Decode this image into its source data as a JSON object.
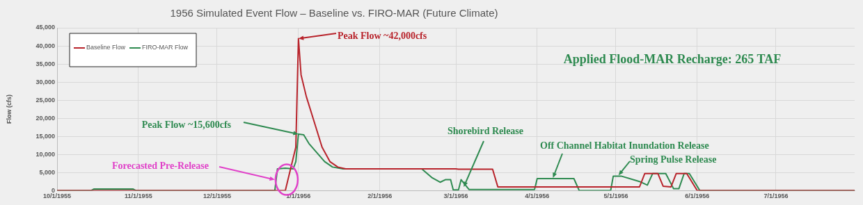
{
  "chart_data": {
    "type": "line",
    "title": "1956 Simulated Event Flow – Baseline vs. FIRO-MAR (Future Climate)",
    "ylabel": "Flow (cfs)",
    "xlim": [
      "1955-10-01",
      "1956-07-31"
    ],
    "xticks": [
      {
        "value": "1955-10-01",
        "label": "10/1/1955"
      },
      {
        "value": "1955-11-01",
        "label": "11/1/1955"
      },
      {
        "value": "1955-12-01",
        "label": "12/1/1955"
      },
      {
        "value": "1956-01-01",
        "label": "1/1/1956"
      },
      {
        "value": "1956-02-01",
        "label": "2/1/1956"
      },
      {
        "value": "1956-03-01",
        "label": "3/1/1956"
      },
      {
        "value": "1956-04-01",
        "label": "4/1/1956"
      },
      {
        "value": "1956-05-01",
        "label": "5/1/1956"
      },
      {
        "value": "1956-06-01",
        "label": "6/1/1956"
      },
      {
        "value": "1956-07-01",
        "label": "7/1/1956"
      }
    ],
    "ylim": [
      0,
      45000
    ],
    "yticks": [
      0,
      {
        "value": 5000,
        "label": "5,000"
      },
      {
        "value": 10000,
        "label": "10,000"
      },
      {
        "value": 15000,
        "label": "15,000"
      },
      {
        "value": 20000,
        "label": "20,000"
      },
      {
        "value": 25000,
        "label": "25,000"
      },
      {
        "value": 30000,
        "label": "30,000"
      },
      {
        "value": 35000,
        "label": "35,000"
      },
      {
        "value": 40000,
        "label": "40,000"
      },
      {
        "value": 45000,
        "label": "45,000"
      }
    ],
    "grid": true,
    "legend": "top left",
    "marker": "none",
    "series": [
      {
        "name": "Baseline Flow",
        "color": "#b8232b",
        "x": [
          "1955-10-01",
          "1955-12-27",
          "1955-12-29",
          "1955-12-31",
          "1956-01-01",
          "1956-01-02",
          "1956-01-04",
          "1956-01-07",
          "1956-01-10",
          "1956-01-13",
          "1956-01-16",
          "1956-01-19",
          "1956-03-01",
          "1956-03-02",
          "1956-03-15",
          "1956-03-17",
          "1956-05-10",
          "1956-05-12",
          "1956-05-17",
          "1956-05-19",
          "1956-05-22",
          "1956-05-24",
          "1956-05-28",
          "1956-06-01",
          "1956-07-31"
        ],
        "values": [
          0,
          0,
          6000,
          12000,
          42000,
          32000,
          26000,
          19000,
          12000,
          8000,
          6500,
          6000,
          6000,
          5900,
          5900,
          1000,
          1000,
          4700,
          4700,
          1200,
          1000,
          4700,
          4700,
          0,
          0
        ]
      },
      {
        "name": "FIRO-MAR Flow",
        "color": "#2e8a50",
        "x": [
          "1955-10-01",
          "1955-10-14",
          "1955-10-15",
          "1955-10-30",
          "1955-10-31",
          "1955-12-23",
          "1955-12-24",
          "1955-12-27",
          "1955-12-30",
          "1955-12-31",
          "1956-01-01",
          "1956-01-03",
          "1956-01-05",
          "1956-01-08",
          "1956-01-11",
          "1956-01-14",
          "1956-01-18",
          "1956-02-17",
          "1956-02-21",
          "1956-02-24",
          "1956-02-26",
          "1956-02-28",
          "1956-02-29",
          "1956-03-02",
          "1956-03-03",
          "1956-03-06",
          "1956-03-31",
          "1956-04-01",
          "1956-04-15",
          "1956-04-17",
          "1956-04-29",
          "1956-04-30",
          "1956-05-03",
          "1956-05-10",
          "1956-05-13",
          "1956-05-15",
          "1956-05-20",
          "1956-05-23",
          "1956-05-25",
          "1956-05-27",
          "1956-05-29",
          "1956-06-02",
          "1956-07-31"
        ],
        "values": [
          0,
          0,
          400,
          400,
          0,
          0,
          6000,
          6200,
          6000,
          8000,
          15600,
          15400,
          13000,
          10500,
          8000,
          6500,
          6000,
          6000,
          3500,
          2300,
          3000,
          3000,
          200,
          200,
          3000,
          300,
          300,
          3300,
          3300,
          0,
          0,
          4000,
          4000,
          2500,
          1500,
          4700,
          4700,
          500,
          500,
          4700,
          4700,
          0,
          0
        ]
      }
    ],
    "annotations": [
      {
        "text": "Peak Flow ~42,000cfs",
        "x": "1956-01-01",
        "y": 42000
      },
      {
        "text": "Peak Flow ~15,600cfs",
        "x": "1956-01-01",
        "y": 15600
      },
      {
        "text": "Forecasted Pre-Release",
        "x": "1955-12-23",
        "y": 3000
      },
      {
        "text": "Shorebird Release",
        "x": "1956-03-04",
        "y": 1000
      },
      {
        "text": "Off Channel Habitat Inundation Release",
        "x": "1956-04-07",
        "y": 3500
      },
      {
        "text": "Spring Pulse Release",
        "x": "1956-05-02",
        "y": 4200
      },
      "Applied Flood-MAR Recharge: 265 TAF"
    ]
  }
}
